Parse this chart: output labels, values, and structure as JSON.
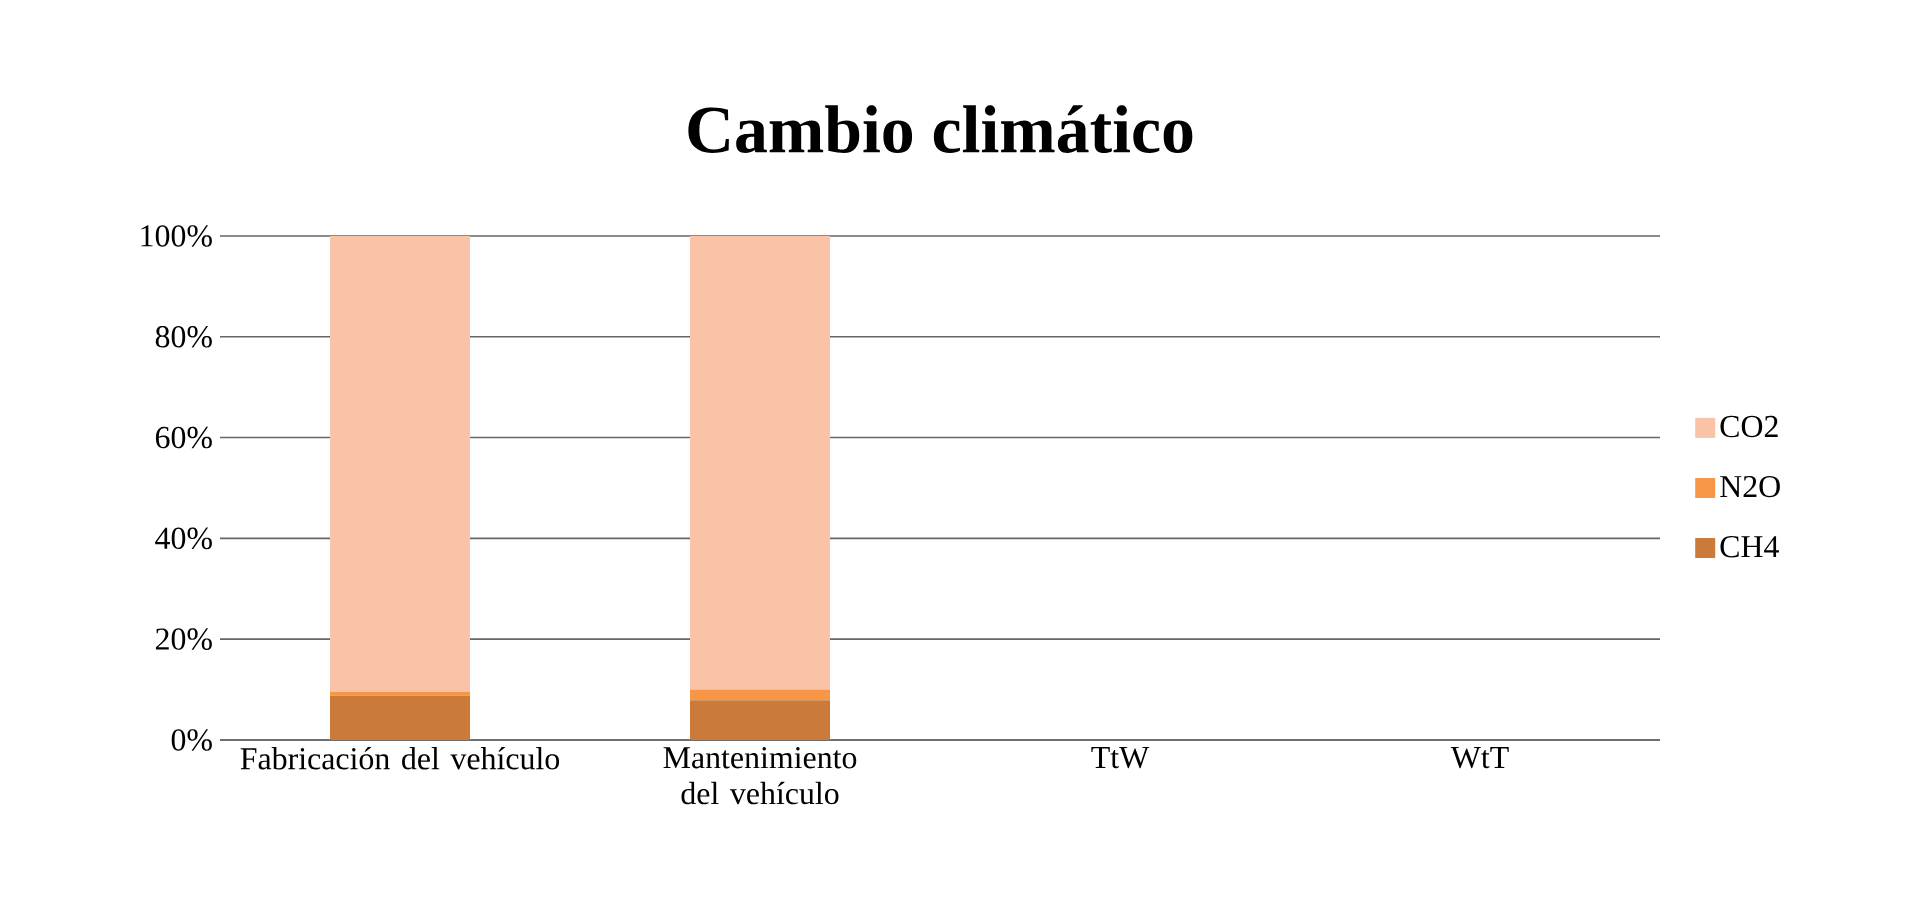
{
  "chart_data": {
    "type": "bar",
    "title": "Cambio climático",
    "stacked": true,
    "categories": [
      "Fabricación del vehículo",
      "Mantenimiento del vehículo",
      "TtW",
      "WtT"
    ],
    "series": [
      {
        "name": "CH4",
        "color": "#cc7a3a",
        "values": [
          8.8,
          7.9,
          null,
          null
        ]
      },
      {
        "name": "N2O",
        "color": "#f79646",
        "values": [
          0.7,
          2.1,
          null,
          null
        ]
      },
      {
        "name": "CO2",
        "color": "#fac2a6",
        "values": [
          90.5,
          90.0,
          null,
          null
        ]
      }
    ],
    "ylim": [
      0,
      100
    ],
    "yticks": [
      {
        "value": 0,
        "label": "0%"
      },
      {
        "value": 20,
        "label": "20%"
      },
      {
        "value": 40,
        "label": "40%"
      },
      {
        "value": 60,
        "label": "60%"
      },
      {
        "value": 80,
        "label": "80%"
      },
      {
        "value": 100,
        "label": "100%"
      }
    ],
    "grid": "y",
    "legend": "right"
  }
}
